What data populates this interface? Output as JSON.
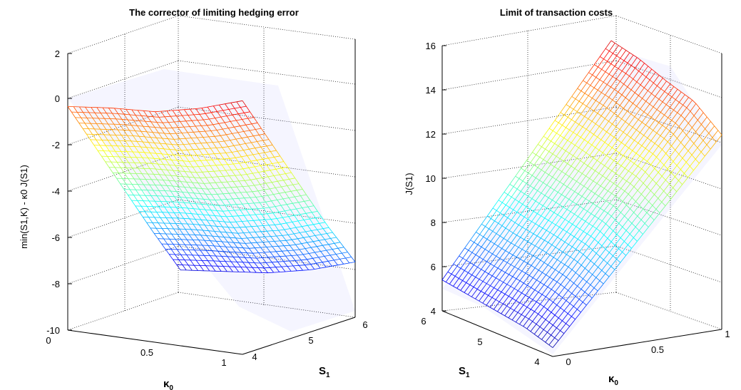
{
  "colormap": "jet",
  "chart_data": [
    {
      "type": "surface",
      "title": "The corrector of limiting  hedging error",
      "xlabel": "κ",
      "xlabel_sub": "0",
      "ylabel": "S",
      "ylabel_sub": "1",
      "zlabel": "min(S1,K) - κ0 J(S1)",
      "x_ticks": [
        "0",
        "0.5",
        "1"
      ],
      "y_ticks": [
        "4",
        "5",
        "6"
      ],
      "z_ticks": [
        "2",
        "0",
        "-2",
        "-4",
        "-6",
        "-8",
        "-10"
      ],
      "xlim": [
        0,
        1
      ],
      "ylim": [
        4,
        6
      ],
      "zlim": [
        -10,
        2
      ],
      "grid": true,
      "x": [
        0,
        0.25,
        0.5,
        0.75,
        1
      ],
      "y": [
        4,
        4.5,
        5,
        5.5,
        6
      ],
      "z": [
        [
          -0.3,
          -0.1,
          0,
          0.4,
          1.0
        ],
        [
          -2.5,
          -2.3,
          -2.2,
          -1.8,
          -1.2
        ],
        [
          -4.7,
          -4.5,
          -4.4,
          -4.0,
          -3.4
        ],
        [
          -6.9,
          -6.7,
          -6.6,
          -6.2,
          -5.6
        ],
        [
          -9.0,
          -8.8,
          -8.6,
          -8.2,
          -7.6
        ]
      ]
    },
    {
      "type": "surface",
      "title": "Limit of transaction costs",
      "xlabel": "κ",
      "xlabel_sub": "0",
      "ylabel": "S",
      "ylabel_sub": "1",
      "zlabel": "J(S1)",
      "x_ticks": [
        "0",
        "0.5",
        "1"
      ],
      "y_ticks": [
        "4",
        "5",
        "6"
      ],
      "z_ticks": [
        "16",
        "14",
        "12",
        "10",
        "8",
        "6",
        "4"
      ],
      "xlim": [
        0,
        1
      ],
      "ylim": [
        4,
        6
      ],
      "zlim": [
        4,
        16
      ],
      "grid": true,
      "x": [
        0,
        0.25,
        0.5,
        0.75,
        1
      ],
      "y": [
        4,
        4.5,
        5,
        5.5,
        6
      ],
      "z": [
        [
          4.4,
          6.5,
          8.6,
          10.7,
          12.8
        ],
        [
          4.8,
          7.0,
          9.3,
          11.5,
          13.8
        ],
        [
          5.0,
          7.3,
          9.6,
          11.9,
          14.2
        ],
        [
          5.2,
          7.5,
          9.9,
          12.3,
          14.7
        ],
        [
          5.4,
          7.8,
          10.2,
          12.6,
          15.0
        ]
      ]
    }
  ]
}
